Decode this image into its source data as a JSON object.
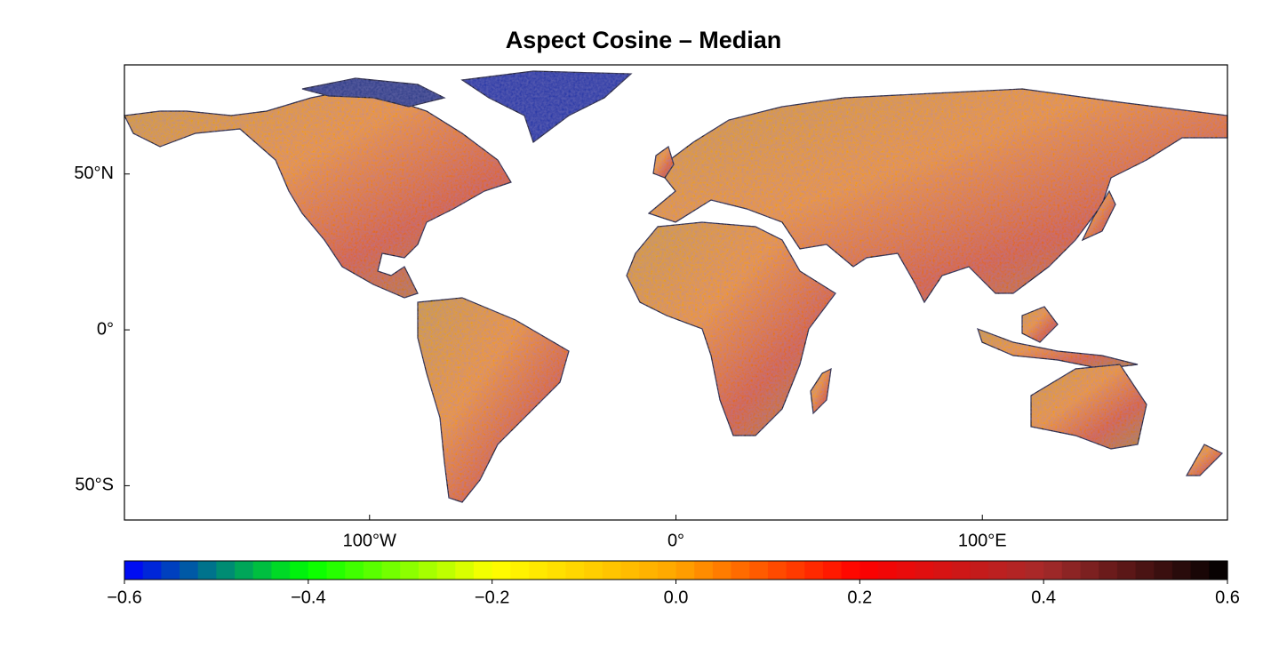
{
  "chart_data": {
    "type": "map",
    "title": "Aspect Cosine – Median",
    "xlim": [
      -180,
      180
    ],
    "ylim": [
      -61,
      85
    ],
    "xticks": [
      {
        "value": -100,
        "label": "100°W"
      },
      {
        "value": 0,
        "label": "0°"
      },
      {
        "value": 100,
        "label": "100°E"
      }
    ],
    "yticks": [
      {
        "value": 50,
        "label": "50°N"
      },
      {
        "value": 0,
        "label": "0°"
      },
      {
        "value": -50,
        "label": "50°S"
      }
    ],
    "colorbar": {
      "lim": [
        -0.6,
        0.6
      ],
      "ticks": [
        {
          "value": -0.6,
          "label": "−0.6"
        },
        {
          "value": -0.4,
          "label": "−0.4"
        },
        {
          "value": -0.2,
          "label": "−0.2"
        },
        {
          "value": 0,
          "label": "0.0"
        },
        {
          "value": 0.2,
          "label": "0.2"
        },
        {
          "value": 0.4,
          "label": "0.4"
        },
        {
          "value": 0.6,
          "label": "0.6"
        }
      ],
      "colors": [
        "#0000ff",
        "#00ff00",
        "#ffff00",
        "#ffa500",
        "#ff0000",
        "#a52a2a",
        "#000000"
      ]
    }
  }
}
